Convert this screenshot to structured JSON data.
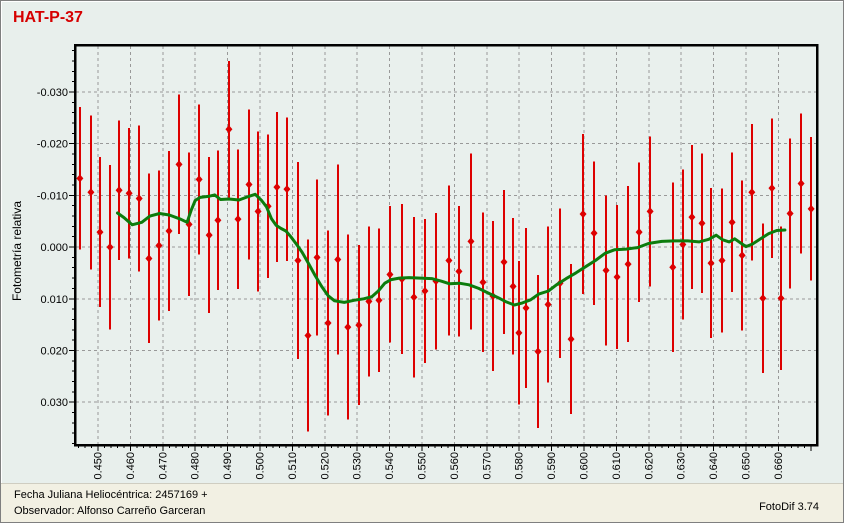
{
  "header": {
    "title": "HAT-P-37",
    "title_color": "#d60000"
  },
  "footer": {
    "line1": "Fecha Juliana Heliocéntrica: 2457169 +",
    "line2": "Observador: Alfonso Carreño Garceran",
    "app_version": "FotoDif 3.74"
  },
  "chart_data": {
    "type": "scatter",
    "title": "HAT-P-37",
    "xlabel": "",
    "ylabel": "Fotometría relativa",
    "grid": {
      "style": "dashed",
      "color": "#999999"
    },
    "colors": {
      "points": "#dd0000",
      "smoothed_line": "#0c7c0c",
      "axis": "#000000",
      "plot_bg": "#e9f0ed",
      "page_bg": "#e8efec",
      "footer_bg": "#f2f0e3",
      "title": "#d60000"
    },
    "x_axis": {
      "range": [
        0.4432,
        0.6716
      ],
      "minor_step": 0.002,
      "tick_labels": [
        "0.450",
        "0.460",
        "0.470",
        "0.480",
        "0.490",
        "0.500",
        "0.510",
        "0.520",
        "0.530",
        "0.540",
        "0.550",
        "0.560",
        "0.570",
        "0.580",
        "0.590",
        "0.600",
        "0.610",
        "0.620",
        "0.630",
        "0.640",
        "0.650",
        "0.660"
      ]
    },
    "y_axis": {
      "range": [
        -0.0389,
        0.0381
      ],
      "inverted": true,
      "minor_step": 0.002,
      "tick_labels": [
        "-0.030",
        "-0.020",
        "-0.010",
        "0.000",
        "0.010",
        "0.020",
        "0.030"
      ]
    },
    "series": [
      {
        "name": "measurements",
        "type": "scatter-errorbar",
        "marker": "diamond",
        "points": [
          [
            0.4444,
            -0.0133,
            0.0138
          ],
          [
            0.4478,
            -0.0106,
            0.0149
          ],
          [
            0.4506,
            -0.0029,
            0.0145
          ],
          [
            0.4537,
            0.0,
            0.0159
          ],
          [
            0.4565,
            -0.011,
            0.0135
          ],
          [
            0.4596,
            -0.0104,
            0.0126
          ],
          [
            0.4627,
            -0.0094,
            0.0141
          ],
          [
            0.4657,
            0.0022,
            0.0164
          ],
          [
            0.4688,
            -0.0003,
            0.0145
          ],
          [
            0.4719,
            -0.0031,
            0.0155
          ],
          [
            0.475,
            -0.016,
            0.0135
          ],
          [
            0.4781,
            -0.0044,
            0.0139
          ],
          [
            0.4812,
            -0.0131,
            0.0145
          ],
          [
            0.4843,
            -0.0023,
            0.0151
          ],
          [
            0.487,
            -0.0052,
            0.0135
          ],
          [
            0.4904,
            -0.0228,
            0.0132
          ],
          [
            0.4932,
            -0.0054,
            0.0135
          ],
          [
            0.4966,
            -0.0121,
            0.0145
          ],
          [
            0.4994,
            -0.0069,
            0.0155
          ],
          [
            0.5025,
            -0.0079,
            0.0139
          ],
          [
            0.5052,
            -0.0116,
            0.0145
          ],
          [
            0.5083,
            -0.0112,
            0.0139
          ],
          [
            0.5117,
            0.0026,
            0.0191
          ],
          [
            0.5148,
            0.0171,
            0.0186
          ],
          [
            0.5176,
            0.002,
            0.0151
          ],
          [
            0.521,
            0.0147,
            0.0179
          ],
          [
            0.524,
            0.0024,
            0.0184
          ],
          [
            0.5271,
            0.0155,
            0.0179
          ],
          [
            0.5305,
            0.0151,
            0.0155
          ],
          [
            0.5336,
            0.0105,
            0.0145
          ],
          [
            0.5367,
            0.0103,
            0.0139
          ],
          [
            0.5401,
            0.0053,
            0.0132
          ],
          [
            0.5438,
            0.0062,
            0.0145
          ],
          [
            0.5475,
            0.0097,
            0.0155
          ],
          [
            0.5509,
            0.0085,
            0.0139
          ],
          [
            0.5543,
            0.0066,
            0.0132
          ],
          [
            0.5583,
            0.0026,
            0.0145
          ],
          [
            0.5614,
            0.0047,
            0.0126
          ],
          [
            0.5651,
            -0.0011,
            0.017
          ],
          [
            0.5688,
            0.0068,
            0.0135
          ],
          [
            0.5719,
            0.0095,
            0.0145
          ],
          [
            0.5753,
            0.0029,
            0.0139
          ],
          [
            0.5781,
            0.0076,
            0.0132
          ],
          [
            0.5799,
            0.0166,
            0.0139
          ],
          [
            0.5821,
            0.0118,
            0.0155
          ],
          [
            0.5858,
            0.0202,
            0.0148
          ],
          [
            0.5889,
            0.0111,
            0.0151
          ],
          [
            0.5926,
            0.007,
            0.0145
          ],
          [
            0.596,
            0.0178,
            0.0145
          ],
          [
            0.5997,
            -0.0064,
            0.0155
          ],
          [
            0.6031,
            -0.0027,
            0.0139
          ],
          [
            0.6068,
            0.0045,
            0.0145
          ],
          [
            0.6102,
            0.0058,
            0.0139
          ],
          [
            0.6136,
            0.0033,
            0.0151
          ],
          [
            0.617,
            -0.0029,
            0.0135
          ],
          [
            0.6204,
            -0.0069,
            0.0145
          ],
          [
            0.6274,
            0.0039,
            0.0164
          ],
          [
            0.6305,
            -0.0005,
            0.0145
          ],
          [
            0.6333,
            -0.0058,
            0.0139
          ],
          [
            0.6364,
            -0.0046,
            0.0135
          ],
          [
            0.6392,
            0.0031,
            0.0145
          ],
          [
            0.6426,
            0.0026,
            0.0139
          ],
          [
            0.6457,
            -0.0048,
            0.0135
          ],
          [
            0.6488,
            0.0016,
            0.0145
          ],
          [
            0.6518,
            -0.0106,
            0.0132
          ],
          [
            0.6552,
            0.0099,
            0.0145
          ],
          [
            0.658,
            -0.0114,
            0.0135
          ],
          [
            0.6608,
            0.0099,
            0.0139
          ],
          [
            0.6636,
            -0.0065,
            0.0145
          ],
          [
            0.667,
            -0.0123,
            0.0135
          ],
          [
            0.6701,
            -0.0074,
            0.0139
          ]
        ]
      },
      {
        "name": "smoothed-average",
        "type": "line",
        "width": 3,
        "points": [
          [
            0.456,
            -0.0066
          ],
          [
            0.458,
            -0.0057
          ],
          [
            0.4605,
            -0.0043
          ],
          [
            0.4635,
            -0.0048
          ],
          [
            0.466,
            -0.006
          ],
          [
            0.469,
            -0.0065
          ],
          [
            0.472,
            -0.0062
          ],
          [
            0.4755,
            -0.0054
          ],
          [
            0.4775,
            -0.0048
          ],
          [
            0.4788,
            -0.0072
          ],
          [
            0.48,
            -0.009
          ],
          [
            0.4815,
            -0.0096
          ],
          [
            0.484,
            -0.0098
          ],
          [
            0.486,
            -0.0101
          ],
          [
            0.4878,
            -0.0092
          ],
          [
            0.4905,
            -0.0093
          ],
          [
            0.4935,
            -0.0091
          ],
          [
            0.4965,
            -0.0098
          ],
          [
            0.4985,
            -0.0102
          ],
          [
            0.5005,
            -0.009
          ],
          [
            0.502,
            -0.0078
          ],
          [
            0.5035,
            -0.0055
          ],
          [
            0.505,
            -0.0042
          ],
          [
            0.5065,
            -0.0036
          ],
          [
            0.508,
            -0.0031
          ],
          [
            0.5095,
            -0.002
          ],
          [
            0.5112,
            -0.0006
          ],
          [
            0.513,
            0.001
          ],
          [
            0.515,
            0.0032
          ],
          [
            0.517,
            0.0055
          ],
          [
            0.519,
            0.0076
          ],
          [
            0.521,
            0.0094
          ],
          [
            0.523,
            0.0104
          ],
          [
            0.526,
            0.0107
          ],
          [
            0.529,
            0.0103
          ],
          [
            0.532,
            0.01
          ],
          [
            0.5345,
            0.0096
          ],
          [
            0.5365,
            0.0085
          ],
          [
            0.5385,
            0.007
          ],
          [
            0.5405,
            0.0063
          ],
          [
            0.543,
            0.006
          ],
          [
            0.546,
            0.0059
          ],
          [
            0.5495,
            0.006
          ],
          [
            0.553,
            0.0061
          ],
          [
            0.556,
            0.0066
          ],
          [
            0.5585,
            0.0071
          ],
          [
            0.5615,
            0.007
          ],
          [
            0.5645,
            0.0073
          ],
          [
            0.5675,
            0.008
          ],
          [
            0.5705,
            0.0089
          ],
          [
            0.5735,
            0.0098
          ],
          [
            0.576,
            0.0106
          ],
          [
            0.5785,
            0.0112
          ],
          [
            0.581,
            0.0108
          ],
          [
            0.5835,
            0.0102
          ],
          [
            0.586,
            0.0091
          ],
          [
            0.589,
            0.0085
          ],
          [
            0.5915,
            0.0073
          ],
          [
            0.5945,
            0.0061
          ],
          [
            0.5975,
            0.005
          ],
          [
            0.6005,
            0.0038
          ],
          [
            0.6035,
            0.0026
          ],
          [
            0.6065,
            0.0012
          ],
          [
            0.6095,
            0.0005
          ],
          [
            0.613,
            0.0004
          ],
          [
            0.6165,
            0.0001
          ],
          [
            0.62,
            -0.0007
          ],
          [
            0.624,
            -0.0011
          ],
          [
            0.628,
            -0.0012
          ],
          [
            0.632,
            -0.0012
          ],
          [
            0.6355,
            -0.001
          ],
          [
            0.6385,
            -0.0015
          ],
          [
            0.6408,
            -0.0023
          ],
          [
            0.6428,
            -0.0014
          ],
          [
            0.6448,
            -0.001
          ],
          [
            0.6465,
            -0.0016
          ],
          [
            0.6483,
            -0.0008
          ],
          [
            0.65,
            -0.0001
          ],
          [
            0.652,
            -0.0006
          ],
          [
            0.6545,
            -0.0016
          ],
          [
            0.657,
            -0.0026
          ],
          [
            0.6595,
            -0.0032
          ],
          [
            0.662,
            -0.0033
          ]
        ]
      }
    ]
  }
}
